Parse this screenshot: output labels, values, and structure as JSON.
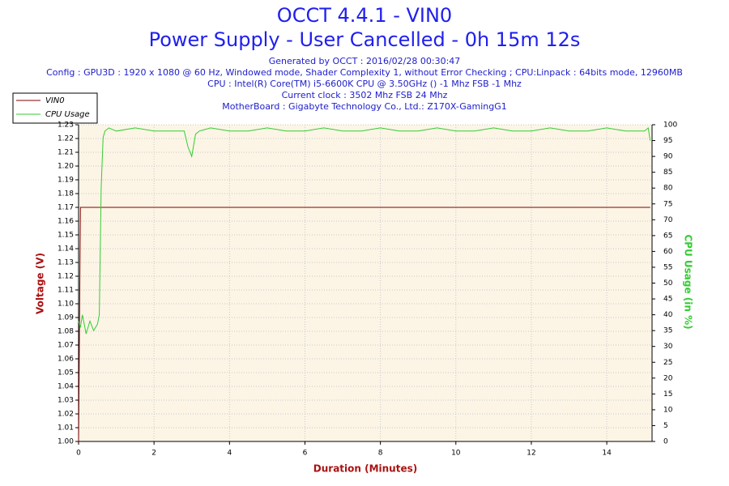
{
  "chart_data": {
    "type": "line",
    "title": "OCCT 4.4.1 - VIN0",
    "subtitle": "Power Supply - User Cancelled - 0h 15m 12s",
    "info": [
      "Generated by OCCT : 2016/02/28 00:30:47",
      "Config : GPU3D : 1920 x 1080 @ 60 Hz, Windowed mode, Shader Complexity 1, without Error Checking ; CPU:Linpack : 64bits mode, 12960MB",
      "CPU : Intel(R) Core(TM) i5-6600K CPU @ 3.50GHz () -1 Mhz FSB -1 Mhz",
      "Current clock : 3502 Mhz FSB 24 Mhz",
      "MotherBoard : Gigabyte Technology Co., Ltd.: Z170X-GamingG1"
    ],
    "xlabel": "Duration (Minutes)",
    "ylabel": "Voltage (V)",
    "y2label": "CPU Usage (in %)",
    "x": [
      0,
      0.05,
      0.1,
      0.2,
      0.3,
      0.4,
      0.5,
      0.55,
      0.6,
      0.65,
      0.7,
      0.8,
      1,
      1.5,
      2,
      2.5,
      2.8,
      2.9,
      3,
      3.1,
      3.2,
      3.5,
      4,
      4.5,
      5,
      5.5,
      6,
      6.5,
      7,
      7.5,
      8,
      8.5,
      9,
      9.5,
      10,
      10.5,
      11,
      11.5,
      12,
      12.5,
      13,
      13.5,
      14,
      14.5,
      15,
      15.1,
      15.15
    ],
    "series": [
      {
        "name": "VIN0",
        "color": "#800000",
        "values": [
          1.0,
          1.17,
          1.17,
          1.17,
          1.17,
          1.17,
          1.17,
          1.17,
          1.17,
          1.17,
          1.17,
          1.17,
          1.17,
          1.17,
          1.17,
          1.17,
          1.17,
          1.17,
          1.17,
          1.17,
          1.17,
          1.17,
          1.17,
          1.17,
          1.17,
          1.17,
          1.17,
          1.17,
          1.17,
          1.17,
          1.17,
          1.17,
          1.17,
          1.17,
          1.17,
          1.17,
          1.17,
          1.17,
          1.17,
          1.17,
          1.17,
          1.17,
          1.17,
          1.17,
          1.17,
          1.17,
          1.17
        ]
      },
      {
        "name": "CPU Usage",
        "color": "#33cc33",
        "axis": "y2",
        "values": [
          38,
          36,
          40,
          34,
          38,
          35,
          37,
          40,
          80,
          96,
          98,
          99,
          98,
          99,
          98,
          98,
          98,
          93,
          90,
          97,
          98,
          99,
          98,
          98,
          99,
          98,
          98,
          99,
          98,
          98,
          99,
          98,
          98,
          99,
          98,
          98,
          99,
          98,
          98,
          99,
          98,
          98,
          99,
          98,
          98,
          99,
          95
        ]
      }
    ],
    "xlim": [
      0,
      15.2
    ],
    "xticks": [
      0,
      2,
      4,
      6,
      8,
      10,
      12,
      14
    ],
    "ylim": [
      1.0,
      1.23
    ],
    "yticks": [
      {
        "value": 1.0,
        "label": "1.00"
      },
      1.01,
      1.02,
      1.03,
      1.04,
      1.05,
      1.06,
      1.07,
      1.08,
      1.09,
      {
        "value": 1.1,
        "label": "1.10"
      },
      1.11,
      1.12,
      1.13,
      1.14,
      1.15,
      1.16,
      1.17,
      1.18,
      1.19,
      {
        "value": 1.2,
        "label": "1.20"
      },
      1.21,
      1.22,
      1.23
    ],
    "y2lim": [
      0,
      100
    ],
    "y2ticks": [
      0,
      5,
      10,
      15,
      20,
      25,
      30,
      35,
      40,
      45,
      50,
      55,
      60,
      65,
      70,
      75,
      80,
      85,
      90,
      95,
      100
    ],
    "grid": true,
    "legend": "top-left"
  }
}
